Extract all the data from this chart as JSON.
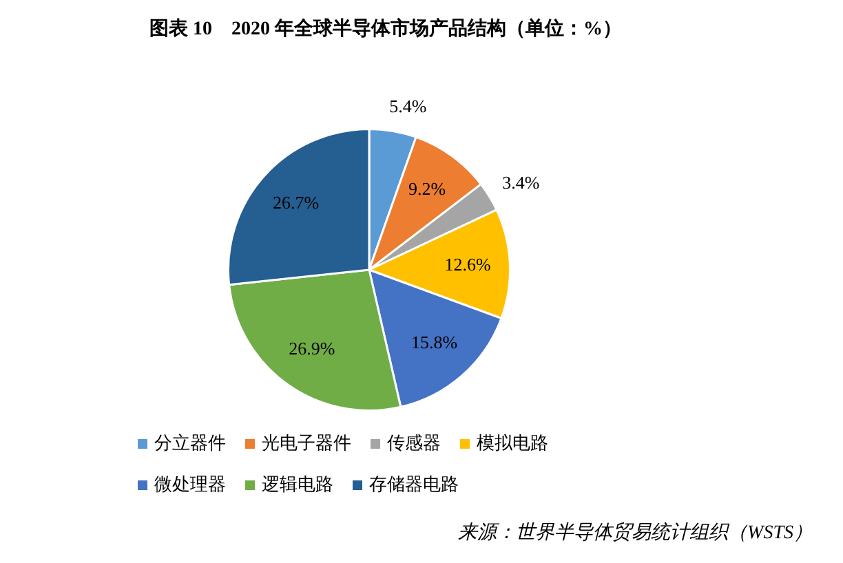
{
  "chart_data": {
    "type": "pie",
    "title": "图表 10　2020 年全球半导体市场产品结构（单位：%）",
    "categories": [
      "分立器件",
      "光电子器件",
      "传感器",
      "模拟电路",
      "微处理器",
      "逻辑电路",
      "存储器电路"
    ],
    "values": [
      5.4,
      9.2,
      3.4,
      12.6,
      15.8,
      26.9,
      26.7
    ],
    "colors": [
      "#5b9bd5",
      "#ed7d31",
      "#a5a5a5",
      "#ffc000",
      "#4472c4",
      "#70ad47",
      "#255e91"
    ],
    "value_labels": [
      "5.4%",
      "9.2%",
      "3.4%",
      "12.6%",
      "15.8%",
      "26.9%",
      "26.7%"
    ],
    "legend": "bottom",
    "annotations": [
      "来源：世界半导体贸易统计组织（WSTS）"
    ]
  }
}
